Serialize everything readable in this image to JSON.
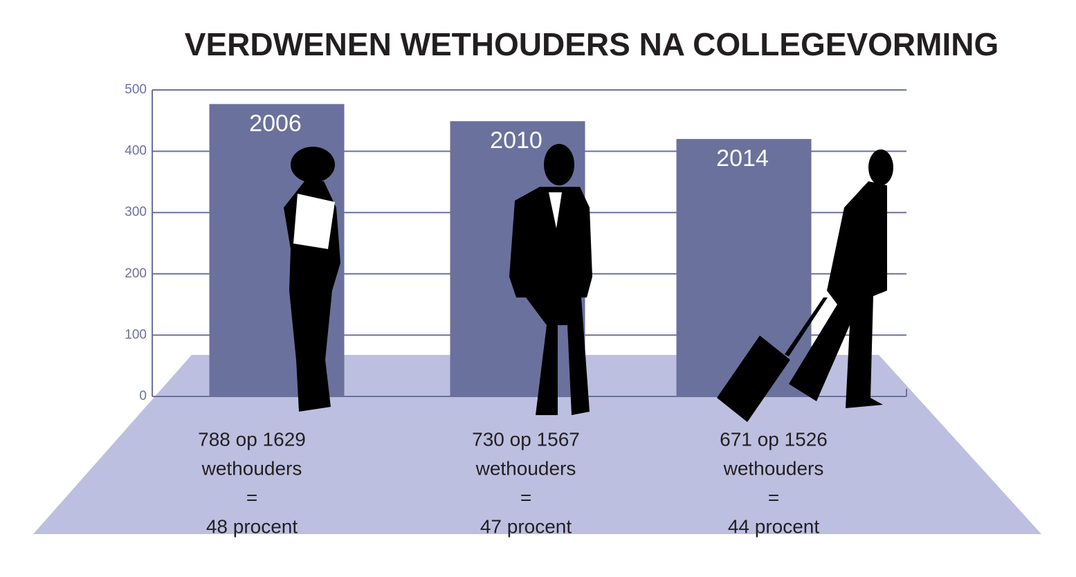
{
  "chart_data": {
    "type": "bar",
    "title": "VERDWENEN WETHOUDERS NA COLLEGEVORMING",
    "categories": [
      "2006",
      "2010",
      "2014"
    ],
    "values": [
      477,
      449,
      420
    ],
    "color": "#6a719c",
    "ylim": [
      0,
      500
    ],
    "yticks": [
      0,
      100,
      200,
      300,
      400,
      500
    ],
    "grid": true,
    "annotations": [
      {
        "lines": [
          "788 op 1629",
          "wethouders",
          "=",
          "48 procent"
        ]
      },
      {
        "lines": [
          "730 op 1567",
          "wethouders",
          "=",
          "47 procent"
        ]
      },
      {
        "lines": [
          "671 op 1526",
          "wethouders",
          "=",
          "44 procent"
        ]
      }
    ]
  }
}
